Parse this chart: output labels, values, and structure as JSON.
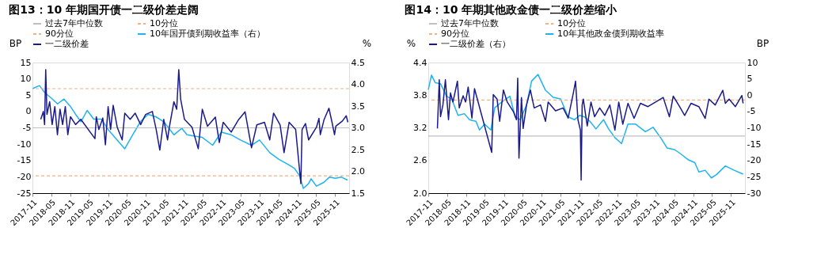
{
  "chart_data": [
    {
      "type": "line",
      "title": "图13：10 年期国开债一二级价差走阔",
      "ylabel": "BP",
      "y2label": "%",
      "xlim": [
        "2017-11-01",
        "2026-03-15"
      ],
      "xticks": [
        "2017-11",
        "2018-05",
        "2018-11",
        "2019-05",
        "2019-11",
        "2020-05",
        "2020-11",
        "2021-05",
        "2021-11",
        "2022-05",
        "2022-11",
        "2023-05",
        "2023-11",
        "2024-05",
        "2024-11",
        "2025-05",
        "2025-11"
      ],
      "ylim": [
        -25,
        15
      ],
      "yticks": [
        -25,
        -20,
        -15,
        -10,
        -5,
        0,
        5,
        10,
        15
      ],
      "y2lim": [
        1.5,
        4.5
      ],
      "y2ticks": [
        1.5,
        {
          "value": 2,
          "label": "2.0"
        },
        2.5,
        {
          "value": 3,
          "label": "3.0"
        },
        3.5,
        {
          "value": 4,
          "label": "4.0"
        },
        4.5
      ],
      "grid": false,
      "legend": "top",
      "line_style": "solid",
      "ref_lines": [
        {
          "axis": "y",
          "value": -5,
          "label": "过去7年中位数",
          "color": "#bfbfbf",
          "line_style": "solid"
        },
        {
          "axis": "y",
          "value": -19.7,
          "label": "10分位",
          "color": "#f4b183",
          "line_style": "dashed"
        },
        {
          "axis": "y",
          "value": 7,
          "label": "90分位",
          "color": "#f4b183",
          "line_style": "dashed"
        }
      ],
      "series": [
        {
          "name": "10年国开债到期收益率（右）",
          "color": "#1fb3ef",
          "axis": "y2",
          "x": [
            "2017-11-01",
            "2018-01-07",
            "2018-02-27",
            "2018-04-28",
            "2018-07-01",
            "2018-09-01",
            "2018-11-03",
            "2018-12-22",
            "2019-02-12",
            "2019-04-13",
            "2019-06-15",
            "2019-08-28",
            "2019-11-01",
            "2020-01-28",
            "2020-04-10",
            "2020-06-25",
            "2020-09-10",
            "2020-11-22",
            "2021-02-07",
            "2021-04-21",
            "2021-07-28",
            "2021-10-12",
            "2021-12-01",
            "2022-02-15",
            "2022-04-28",
            "2022-08-06",
            "2022-10-28",
            "2023-02-01",
            "2023-05-01",
            "2023-08-16",
            "2023-11-01",
            "2024-02-08",
            "2024-05-04",
            "2024-08-01",
            "2024-10-03",
            "2024-11-22",
            "2024-12-28",
            "2025-02-17",
            "2025-03-13",
            "2025-05-04",
            "2025-07-16",
            "2025-09-07",
            "2025-11-01",
            "2025-12-28",
            "2026-02-27"
          ],
          "values": [
            3.9,
            3.97,
            3.81,
            3.69,
            3.55,
            3.66,
            3.49,
            3.31,
            3.14,
            3.4,
            3.2,
            3.2,
            2.96,
            2.72,
            2.52,
            2.84,
            3.15,
            3.31,
            3.25,
            3.14,
            2.84,
            2.99,
            2.84,
            2.81,
            2.78,
            2.6,
            2.9,
            2.84,
            2.72,
            2.6,
            2.72,
            2.43,
            2.28,
            2.16,
            2.07,
            1.9,
            1.61,
            1.72,
            1.83,
            1.66,
            1.75,
            1.87,
            1.84,
            1.87,
            1.8
          ]
        },
        {
          "name": "一二级价差",
          "color": "#1a1a8c",
          "axis": "y",
          "x": [
            "2018-01-20",
            "2018-02-14",
            "2018-02-26",
            "2018-03-09",
            "2018-03-21",
            "2018-04-16",
            "2018-05-10",
            "2018-06-05",
            "2018-06-30",
            "2018-07-25",
            "2018-08-19",
            "2018-09-14",
            "2018-10-08",
            "2018-11-03",
            "2018-12-22",
            "2019-02-11",
            "2019-06-27",
            "2019-07-10",
            "2019-08-04",
            "2019-09-11",
            "2019-10-06",
            "2019-11-01",
            "2019-11-25",
            "2019-12-20",
            "2020-01-28",
            "2020-03-16",
            "2020-04-10",
            "2020-06-01",
            "2020-07-19",
            "2020-09-10",
            "2020-10-28",
            "2021-01-01",
            "2021-02-07",
            "2021-03-14",
            "2021-04-21",
            "2021-05-28",
            "2021-06-10",
            "2021-07-28",
            "2021-08-24",
            "2021-09-13",
            "2021-10-01",
            "2021-11-07",
            "2022-01-19",
            "2022-03-20",
            "2022-04-28",
            "2022-06-17",
            "2022-09-01",
            "2022-10-09",
            "2022-11-16",
            "2023-02-01",
            "2023-04-13",
            "2023-06-15",
            "2023-08-16",
            "2023-10-06",
            "2023-12-19",
            "2024-02-08",
            "2024-03-16",
            "2024-05-18",
            "2024-06-25",
            "2024-08-13",
            "2024-10-15",
            "2024-12-04",
            "2024-12-16",
            "2025-01-18",
            "2025-02-17",
            "2025-05-04",
            "2025-05-28",
            "2025-06-10",
            "2025-07-16",
            "2025-09-01",
            "2025-10-01",
            "2025-10-25",
            "2025-11-07",
            "2026-01-09",
            "2026-02-15",
            "2026-03-03"
          ],
          "values": [
            -2.4,
            0.0,
            -4,
            12.8,
            -0.9,
            3,
            -4,
            1.5,
            -7.1,
            0.7,
            -4,
            1.5,
            -7.1,
            -1.6,
            -4,
            -2.4,
            -8.3,
            -1.6,
            -5.5,
            -2,
            -10.2,
            1.5,
            -5.5,
            1.9,
            -4.8,
            -8.7,
            -0.5,
            -2.4,
            -0.5,
            -4,
            -0.9,
            0,
            -5.5,
            -11.8,
            -2.4,
            -8.7,
            -5.5,
            3,
            0.7,
            12.8,
            3.8,
            -2.4,
            -4.8,
            -11.4,
            0.7,
            -4.5,
            -1.7,
            -9.5,
            -3.3,
            -6.3,
            -2.5,
            -0.1,
            -11.1,
            -4.1,
            -3.3,
            -8.7,
            -0.5,
            -4.1,
            -12.6,
            -3.3,
            -5.5,
            -22.1,
            -5.5,
            -3.7,
            -8.7,
            -4.8,
            -2.1,
            -7.1,
            -2.5,
            1.0,
            -3.3,
            -7.1,
            -4.5,
            -2.9,
            -1.3,
            -3.3
          ]
        }
      ]
    },
    {
      "type": "line",
      "title": "图14：10 年期其他政金债一二级价差缩小",
      "ylabel": "%",
      "y2label": "BP",
      "xlim": [
        "2017-11-01",
        "2026-03-15"
      ],
      "xticks": [
        "2017-11",
        "2018-05",
        "2018-11",
        "2019-05",
        "2019-11",
        "2020-05",
        "2020-11",
        "2021-05",
        "2021-11",
        "2022-05",
        "2022-11",
        "2023-05",
        "2023-11",
        "2024-05",
        "2024-11",
        "2025-05",
        "2025-11"
      ],
      "ylim": [
        2.0,
        4.4
      ],
      "yticks": [
        {
          "value": 2,
          "label": "2.0"
        },
        2.6,
        3.2,
        3.8,
        4.4
      ],
      "y2lim": [
        -30,
        10
      ],
      "y2ticks": [
        -30,
        -25,
        -20,
        -15,
        -10,
        -5,
        0,
        5,
        10
      ],
      "grid": false,
      "legend": "top",
      "line_style": "solid",
      "ref_lines": [
        {
          "axis": "y2",
          "value": -12.5,
          "label": "过去7年中位数",
          "color": "#bfbfbf",
          "line_style": "solid"
        },
        {
          "axis": "y2",
          "value": null,
          "label": "10分位",
          "color": "#f4b183",
          "line_style": "dashed"
        },
        {
          "axis": "y2",
          "value": -1.5,
          "label": "90分位",
          "color": "#f4b183",
          "line_style": "dashed"
        }
      ],
      "series": [
        {
          "name": "10年其他政金债到期收益率",
          "color": "#1fb3ef",
          "axis": "y",
          "x": [
            "2017-11-01",
            "2017-12-02",
            "2018-01-07",
            "2018-02-27",
            "2018-04-27",
            "2018-06-15",
            "2018-08-15",
            "2018-10-15",
            "2018-12-04",
            "2019-02-04",
            "2019-03-10",
            "2019-04-28",
            "2019-06-28",
            "2019-08-04",
            "2019-10-15",
            "2019-12-28",
            "2020-02-18",
            "2020-04-06",
            "2020-06-06",
            "2020-07-25",
            "2020-09-25",
            "2020-12-06",
            "2021-02-18",
            "2021-05-01",
            "2021-07-13",
            "2021-09-13",
            "2021-11-01",
            "2021-12-19",
            "2022-02-07",
            "2022-04-07",
            "2022-06-19",
            "2022-08-07",
            "2022-10-07",
            "2022-12-10",
            "2023-02-10",
            "2023-04-22",
            "2023-07-28",
            "2023-10-10",
            "2023-12-22",
            "2024-02-22",
            "2024-05-04",
            "2024-07-04",
            "2024-09-16",
            "2024-11-16",
            "2024-12-25",
            "2025-02-24",
            "2025-04-25",
            "2025-06-13",
            "2025-09-07",
            "2025-12-01",
            "2026-02-25"
          ],
          "values": [
            3.9,
            4.17,
            4.03,
            4.01,
            3.78,
            3.73,
            3.43,
            3.46,
            3.35,
            3.32,
            3.16,
            3.27,
            3.16,
            3.57,
            3.68,
            3.78,
            3.4,
            3.35,
            3.62,
            4.06,
            4.18,
            3.89,
            3.76,
            3.73,
            3.4,
            3.35,
            3.43,
            3.4,
            3.32,
            3.18,
            3.35,
            3.18,
            3.02,
            2.91,
            3.27,
            3.27,
            3.13,
            3.21,
            3.02,
            2.83,
            2.8,
            2.72,
            2.61,
            2.56,
            2.39,
            2.42,
            2.28,
            2.34,
            2.5,
            2.42,
            2.35
          ]
        },
        {
          "name": "一二级价差（右）",
          "color": "#1a1a8c",
          "axis": "y2",
          "x": [
            "2018-01-28",
            "2018-02-15",
            "2018-02-27",
            "2018-03-22",
            "2018-04-15",
            "2018-05-15",
            "2018-06-03",
            "2018-06-27",
            "2018-08-09",
            "2018-08-27",
            "2018-10-03",
            "2018-10-27",
            "2018-11-21",
            "2018-12-27",
            "2019-01-21",
            "2019-07-06",
            "2019-07-21",
            "2019-08-27",
            "2019-09-21",
            "2019-10-27",
            "2019-12-03",
            "2020-02-03",
            "2020-03-01",
            "2020-03-13",
            "2020-03-25",
            "2020-04-18",
            "2020-05-04",
            "2020-06-06",
            "2020-07-13",
            "2020-08-19",
            "2020-10-19",
            "2020-12-06",
            "2021-01-01",
            "2021-03-13",
            "2021-05-25",
            "2021-07-13",
            "2021-09-01",
            "2021-09-22",
            "2021-10-15",
            "2021-11-08",
            "2021-11-15",
            "2021-11-25",
            "2021-12-06",
            "2022-01-13",
            "2022-02-18",
            "2022-03-25",
            "2022-05-13",
            "2022-07-01",
            "2022-08-19",
            "2022-10-07",
            "2022-11-13",
            "2022-12-22",
            "2023-02-10",
            "2023-04-10",
            "2023-06-10",
            "2023-08-22",
            "2023-11-04",
            "2024-01-16",
            "2024-03-16",
            "2024-04-22",
            "2024-06-22",
            "2024-08-10",
            "2024-10-10",
            "2024-12-25",
            "2025-02-24",
            "2025-04-01",
            "2025-06-01",
            "2025-08-13",
            "2025-09-07",
            "2025-10-13",
            "2025-12-13",
            "2026-02-13",
            "2026-02-25"
          ],
          "values": [
            -10.2,
            4.7,
            -6.6,
            -3.0,
            4.7,
            -7.5,
            0.7,
            -2.1,
            4.3,
            -3.9,
            -0.2,
            -2.1,
            2.5,
            -7.0,
            2.0,
            -17.5,
            0.2,
            -1.2,
            -8.0,
            1.6,
            -2.1,
            -5.2,
            -7.5,
            5.2,
            -19.3,
            -0.7,
            -10.2,
            -3.0,
            1.6,
            -3.9,
            -3.0,
            -8.0,
            -2.1,
            -4.8,
            -3.9,
            -7.0,
            0.7,
            4.3,
            -7.5,
            -10.7,
            -26.0,
            -3.0,
            -1.2,
            -9.4,
            -2.1,
            -6.6,
            -3.9,
            -6.2,
            -3.0,
            -10.7,
            -2.1,
            -8.9,
            -2.5,
            -7.1,
            -2.5,
            -3.5,
            -2.1,
            -0.7,
            -6.6,
            -0.3,
            -3.5,
            -6.2,
            -2.5,
            -3.5,
            -7.1,
            -1.2,
            -3.0,
            1.5,
            -2.5,
            -1.2,
            -3.5,
            -0.1,
            -2.5
          ]
        }
      ]
    }
  ]
}
